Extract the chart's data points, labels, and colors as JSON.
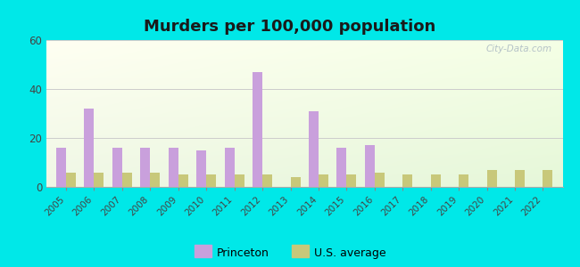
{
  "title": "Murders per 100,000 population",
  "years": [
    2005,
    2006,
    2007,
    2008,
    2009,
    2010,
    2011,
    2012,
    2013,
    2014,
    2015,
    2016,
    2017,
    2018,
    2019,
    2020,
    2021,
    2022
  ],
  "princeton": [
    16,
    32,
    16,
    16,
    16,
    15,
    16,
    47,
    0,
    31,
    16,
    17,
    0,
    0,
    0,
    0,
    0,
    0
  ],
  "us_average": [
    6,
    6,
    6,
    6,
    5,
    5,
    5,
    5,
    4,
    5,
    5,
    6,
    5,
    5,
    5,
    7,
    7,
    7
  ],
  "princeton_color": "#c9a0dc",
  "us_avg_color": "#c8c87a",
  "background_outer": "#00e8e8",
  "ylim": [
    0,
    60
  ],
  "yticks": [
    0,
    20,
    40,
    60
  ],
  "grid_color": "#cccccc",
  "title_fontsize": 13,
  "watermark": "City-Data.com",
  "legend_princeton": "Princeton",
  "legend_us": "U.S. average"
}
